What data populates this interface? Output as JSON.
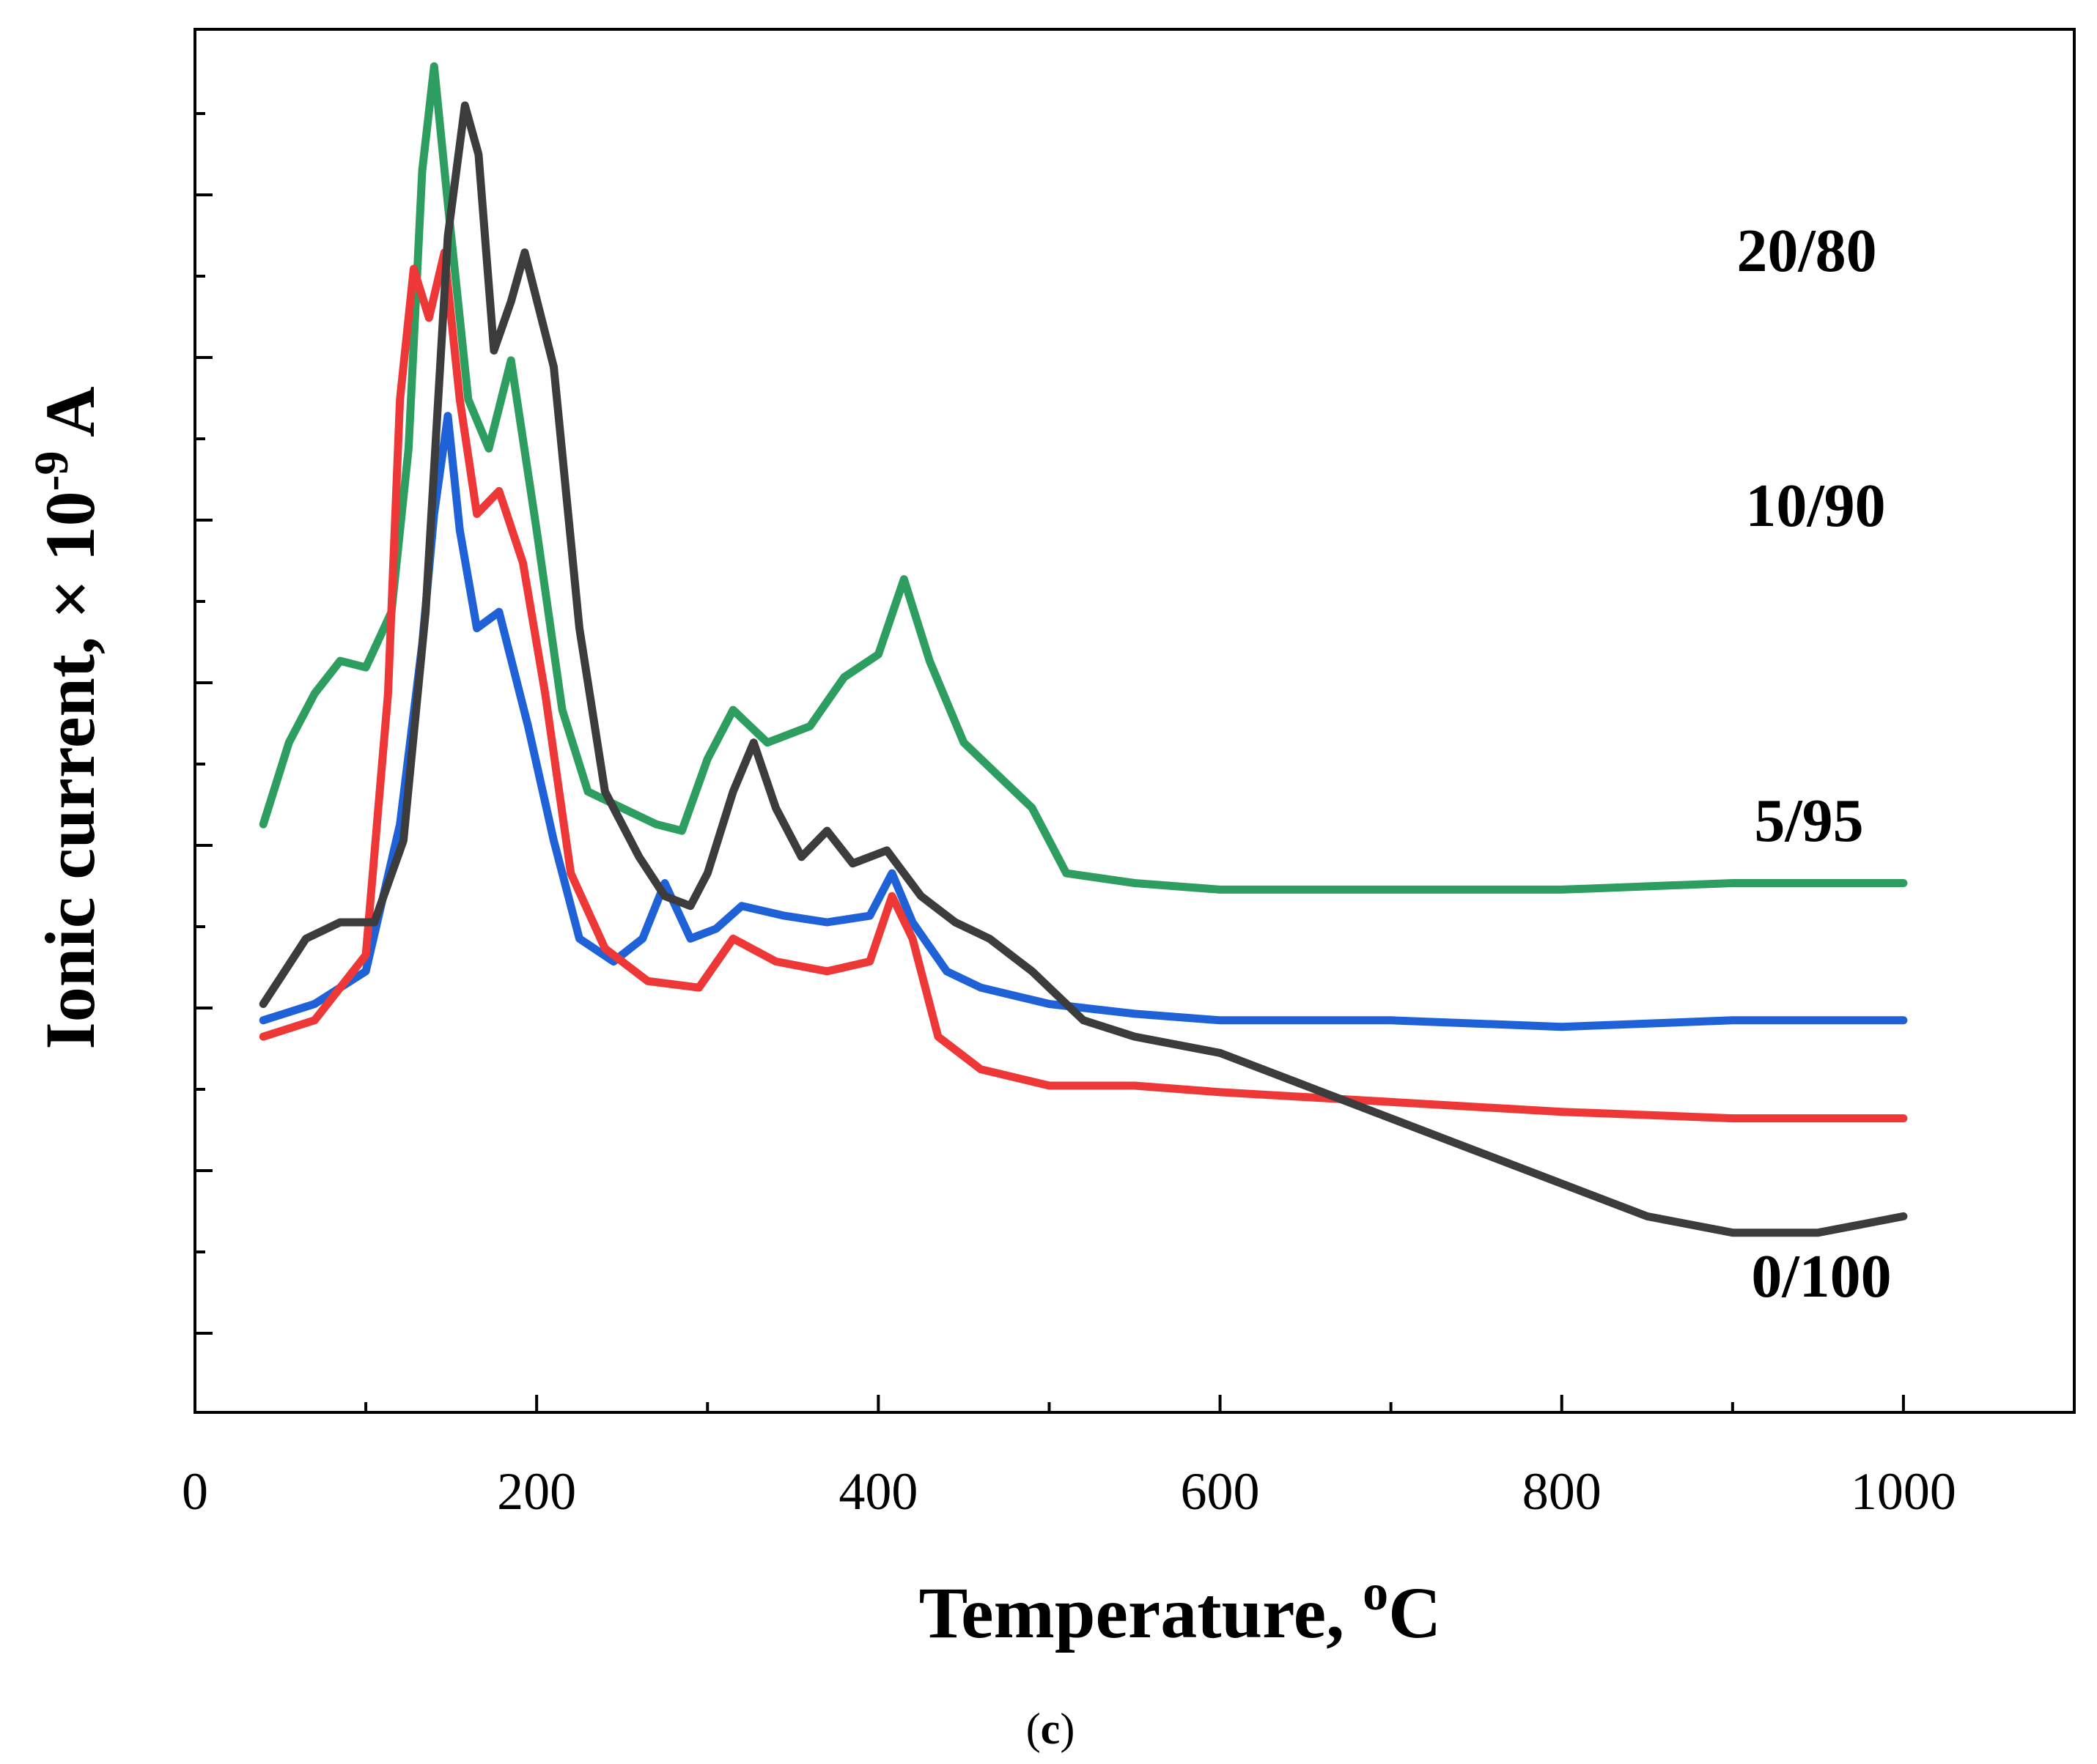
{
  "chart_data": {
    "type": "line",
    "title": "",
    "xlabel": "Temperature, ",
    "xlabel_superscript": "o",
    "xlabel_suffix": "C",
    "ylabel": "Ionic current, × 10",
    "ylabel_superscript": "-9",
    "ylabel_suffix": " A",
    "xlim": [
      0,
      1100
    ],
    "x_ticks": [
      0,
      200,
      400,
      600,
      800,
      1000
    ],
    "y_tick_labels": "none",
    "grid": false,
    "caption_open": "(",
    "caption_letter": "c",
    "caption_close": ")",
    "series": [
      {
        "name": "20/80",
        "color": "#2e9e60",
        "points": [
          [
            40,
            1.8
          ],
          [
            55,
            2.05
          ],
          [
            70,
            2.2
          ],
          [
            85,
            2.3
          ],
          [
            100,
            2.28
          ],
          [
            115,
            2.45
          ],
          [
            125,
            2.95
          ],
          [
            133,
            3.8
          ],
          [
            140,
            4.12
          ],
          [
            148,
            3.7
          ],
          [
            160,
            3.1
          ],
          [
            172,
            2.95
          ],
          [
            185,
            3.22
          ],
          [
            200,
            2.7
          ],
          [
            215,
            2.15
          ],
          [
            230,
            1.9
          ],
          [
            250,
            1.85
          ],
          [
            270,
            1.8
          ],
          [
            285,
            1.78
          ],
          [
            300,
            2.0
          ],
          [
            315,
            2.15
          ],
          [
            335,
            2.05
          ],
          [
            360,
            2.1
          ],
          [
            380,
            2.25
          ],
          [
            400,
            2.32
          ],
          [
            415,
            2.55
          ],
          [
            430,
            2.3
          ],
          [
            450,
            2.05
          ],
          [
            470,
            1.95
          ],
          [
            490,
            1.85
          ],
          [
            510,
            1.65
          ],
          [
            550,
            1.62
          ],
          [
            600,
            1.6
          ],
          [
            700,
            1.6
          ],
          [
            800,
            1.6
          ],
          [
            900,
            1.62
          ],
          [
            1000,
            1.62
          ]
        ]
      },
      {
        "name": "10/90",
        "color": "#1f62d8",
        "points": [
          [
            40,
            1.2
          ],
          [
            70,
            1.25
          ],
          [
            100,
            1.35
          ],
          [
            120,
            1.8
          ],
          [
            133,
            2.35
          ],
          [
            140,
            2.75
          ],
          [
            148,
            3.05
          ],
          [
            155,
            2.7
          ],
          [
            165,
            2.4
          ],
          [
            178,
            2.45
          ],
          [
            195,
            2.1
          ],
          [
            210,
            1.75
          ],
          [
            225,
            1.45
          ],
          [
            245,
            1.38
          ],
          [
            262,
            1.45
          ],
          [
            275,
            1.62
          ],
          [
            290,
            1.45
          ],
          [
            305,
            1.48
          ],
          [
            320,
            1.55
          ],
          [
            345,
            1.52
          ],
          [
            370,
            1.5
          ],
          [
            395,
            1.52
          ],
          [
            408,
            1.65
          ],
          [
            420,
            1.5
          ],
          [
            440,
            1.35
          ],
          [
            460,
            1.3
          ],
          [
            500,
            1.25
          ],
          [
            550,
            1.22
          ],
          [
            600,
            1.2
          ],
          [
            700,
            1.2
          ],
          [
            800,
            1.18
          ],
          [
            900,
            1.2
          ],
          [
            1000,
            1.2
          ]
        ]
      },
      {
        "name": "5/95",
        "color": "#ee3838",
        "points": [
          [
            40,
            1.15
          ],
          [
            70,
            1.2
          ],
          [
            100,
            1.4
          ],
          [
            113,
            2.2
          ],
          [
            120,
            3.1
          ],
          [
            128,
            3.5
          ],
          [
            137,
            3.35
          ],
          [
            146,
            3.55
          ],
          [
            155,
            3.1
          ],
          [
            165,
            2.75
          ],
          [
            178,
            2.82
          ],
          [
            192,
            2.6
          ],
          [
            205,
            2.2
          ],
          [
            220,
            1.65
          ],
          [
            240,
            1.42
          ],
          [
            265,
            1.32
          ],
          [
            295,
            1.3
          ],
          [
            315,
            1.45
          ],
          [
            340,
            1.38
          ],
          [
            370,
            1.35
          ],
          [
            395,
            1.38
          ],
          [
            408,
            1.58
          ],
          [
            420,
            1.45
          ],
          [
            435,
            1.15
          ],
          [
            460,
            1.05
          ],
          [
            500,
            1.0
          ],
          [
            550,
            1.0
          ],
          [
            600,
            0.98
          ],
          [
            700,
            0.95
          ],
          [
            800,
            0.92
          ],
          [
            900,
            0.9
          ],
          [
            1000,
            0.9
          ]
        ]
      },
      {
        "name": "0/100",
        "color": "#3c3c3c",
        "points": [
          [
            40,
            1.25
          ],
          [
            65,
            1.45
          ],
          [
            85,
            1.5
          ],
          [
            105,
            1.5
          ],
          [
            122,
            1.75
          ],
          [
            135,
            2.45
          ],
          [
            148,
            3.6
          ],
          [
            158,
            4.0
          ],
          [
            166,
            3.85
          ],
          [
            175,
            3.25
          ],
          [
            185,
            3.4
          ],
          [
            193,
            3.55
          ],
          [
            210,
            3.2
          ],
          [
            225,
            2.4
          ],
          [
            240,
            1.9
          ],
          [
            260,
            1.7
          ],
          [
            275,
            1.58
          ],
          [
            290,
            1.55
          ],
          [
            300,
            1.65
          ],
          [
            315,
            1.9
          ],
          [
            327,
            2.05
          ],
          [
            340,
            1.85
          ],
          [
            355,
            1.7
          ],
          [
            370,
            1.78
          ],
          [
            385,
            1.68
          ],
          [
            405,
            1.72
          ],
          [
            425,
            1.58
          ],
          [
            445,
            1.5
          ],
          [
            465,
            1.45
          ],
          [
            490,
            1.35
          ],
          [
            520,
            1.2
          ],
          [
            550,
            1.15
          ],
          [
            600,
            1.1
          ],
          [
            650,
            1.0
          ],
          [
            700,
            0.9
          ],
          [
            750,
            0.8
          ],
          [
            800,
            0.7
          ],
          [
            850,
            0.6
          ],
          [
            900,
            0.55
          ],
          [
            950,
            0.55
          ],
          [
            1000,
            0.6
          ]
        ]
      }
    ]
  }
}
